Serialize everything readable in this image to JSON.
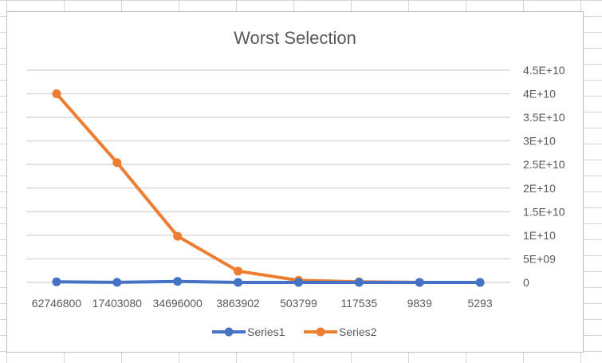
{
  "chart_data": {
    "type": "line",
    "title": "Worst Selection",
    "xlabel": "",
    "ylabel": "",
    "categories": [
      "62746800",
      "17403080",
      "34696000",
      "3863902",
      "503799",
      "117535",
      "9839",
      "5293"
    ],
    "series": [
      {
        "name": "Series1",
        "color": "#4472c4",
        "values": [
          130000000,
          20000000,
          220000000,
          10000000,
          5000000,
          1000000,
          200000,
          100000
        ]
      },
      {
        "name": "Series2",
        "color": "#ed7d31",
        "values": [
          40000000000,
          25400000000,
          9800000000,
          2400000000,
          450000000,
          120000000,
          10000000,
          5000000
        ]
      }
    ],
    "ylim": [
      0,
      45000000000
    ],
    "y_ticks": [
      "0",
      "5E+09",
      "1E+10",
      "1.5E+10",
      "2E+10",
      "2.5E+10",
      "3E+10",
      "3.5E+10",
      "4E+10",
      "4.5E+10"
    ],
    "y_axis_position": "right",
    "grid": true,
    "legend": "bottom"
  }
}
